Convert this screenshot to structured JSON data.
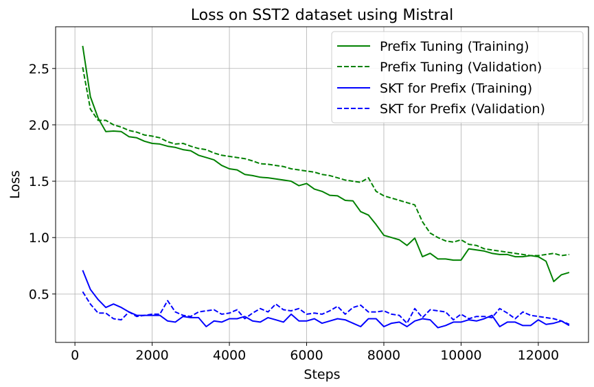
{
  "chart_data": {
    "type": "line",
    "title": "Loss on SST2 dataset using Mistral",
    "xlabel": "Steps",
    "ylabel": "Loss",
    "xlim": [
      -500,
      13300
    ],
    "ylim": [
      0.07,
      2.87
    ],
    "xticks": [
      0,
      2000,
      4000,
      6000,
      8000,
      10000,
      12000
    ],
    "yticks": [
      0.5,
      1.0,
      1.5,
      2.0,
      2.5
    ],
    "xtick_labels": [
      "0",
      "2000",
      "4000",
      "6000",
      "8000",
      "10000",
      "12000"
    ],
    "ytick_labels": [
      "0.5",
      "1.0",
      "1.5",
      "2.0",
      "2.5"
    ],
    "grid": true,
    "legend_position": "top-right",
    "x": [
      200,
      400,
      600,
      800,
      1000,
      1200,
      1400,
      1600,
      1800,
      2000,
      2200,
      2400,
      2600,
      2800,
      3000,
      3200,
      3400,
      3600,
      3800,
      4000,
      4200,
      4400,
      4600,
      4800,
      5000,
      5200,
      5400,
      5600,
      5800,
      6000,
      6200,
      6400,
      6600,
      6800,
      7000,
      7200,
      7400,
      7600,
      7800,
      8000,
      8200,
      8400,
      8600,
      8800,
      9000,
      9200,
      9400,
      9600,
      9800,
      10000,
      10200,
      10400,
      10600,
      10800,
      11000,
      11200,
      11400,
      11600,
      11800,
      12000,
      12200,
      12400,
      12600,
      12800
    ],
    "series": [
      {
        "name": "Prefix Tuning (Training)",
        "color": "#008000",
        "dash": "solid",
        "values": [
          2.7,
          2.25,
          2.06,
          1.94,
          1.945,
          1.94,
          1.895,
          1.885,
          1.855,
          1.835,
          1.83,
          1.81,
          1.8,
          1.78,
          1.77,
          1.73,
          1.71,
          1.69,
          1.64,
          1.61,
          1.6,
          1.56,
          1.55,
          1.535,
          1.53,
          1.52,
          1.51,
          1.5,
          1.46,
          1.48,
          1.43,
          1.41,
          1.375,
          1.37,
          1.33,
          1.325,
          1.23,
          1.2,
          1.115,
          1.02,
          1.0,
          0.98,
          0.93,
          0.995,
          0.83,
          0.86,
          0.81,
          0.81,
          0.8,
          0.8,
          0.9,
          0.89,
          0.88,
          0.86,
          0.85,
          0.85,
          0.83,
          0.83,
          0.84,
          0.83,
          0.79,
          0.61,
          0.67,
          0.69
        ]
      },
      {
        "name": "Prefix Tuning (Validation)",
        "color": "#008000",
        "dash": "dashed",
        "values": [
          2.51,
          2.14,
          2.04,
          2.04,
          2.0,
          1.98,
          1.95,
          1.935,
          1.91,
          1.9,
          1.885,
          1.85,
          1.83,
          1.835,
          1.81,
          1.79,
          1.78,
          1.75,
          1.73,
          1.72,
          1.71,
          1.7,
          1.68,
          1.655,
          1.65,
          1.64,
          1.63,
          1.61,
          1.6,
          1.59,
          1.58,
          1.56,
          1.55,
          1.53,
          1.51,
          1.5,
          1.49,
          1.53,
          1.41,
          1.37,
          1.35,
          1.33,
          1.31,
          1.29,
          1.14,
          1.04,
          1.0,
          0.97,
          0.96,
          0.98,
          0.94,
          0.93,
          0.9,
          0.89,
          0.88,
          0.87,
          0.86,
          0.85,
          0.84,
          0.84,
          0.85,
          0.86,
          0.84,
          0.85
        ]
      },
      {
        "name": "SKT for Prefix (Training)",
        "color": "#0000ff",
        "dash": "solid",
        "values": [
          0.71,
          0.54,
          0.45,
          0.38,
          0.41,
          0.38,
          0.34,
          0.31,
          0.31,
          0.31,
          0.31,
          0.26,
          0.25,
          0.3,
          0.29,
          0.29,
          0.21,
          0.26,
          0.25,
          0.28,
          0.28,
          0.3,
          0.26,
          0.25,
          0.29,
          0.27,
          0.25,
          0.32,
          0.26,
          0.26,
          0.28,
          0.24,
          0.26,
          0.28,
          0.27,
          0.24,
          0.21,
          0.28,
          0.28,
          0.21,
          0.24,
          0.25,
          0.21,
          0.26,
          0.28,
          0.27,
          0.2,
          0.22,
          0.25,
          0.25,
          0.27,
          0.26,
          0.28,
          0.31,
          0.21,
          0.25,
          0.25,
          0.22,
          0.22,
          0.27,
          0.23,
          0.24,
          0.26,
          0.22
        ]
      },
      {
        "name": "SKT for Prefix (Validation)",
        "color": "#0000ff",
        "dash": "dashed",
        "values": [
          0.52,
          0.41,
          0.33,
          0.33,
          0.28,
          0.27,
          0.34,
          0.3,
          0.31,
          0.32,
          0.32,
          0.44,
          0.34,
          0.31,
          0.3,
          0.34,
          0.35,
          0.36,
          0.32,
          0.33,
          0.36,
          0.28,
          0.33,
          0.37,
          0.34,
          0.41,
          0.36,
          0.35,
          0.37,
          0.32,
          0.33,
          0.32,
          0.35,
          0.39,
          0.32,
          0.38,
          0.4,
          0.34,
          0.34,
          0.35,
          0.32,
          0.31,
          0.24,
          0.37,
          0.29,
          0.36,
          0.35,
          0.34,
          0.27,
          0.32,
          0.28,
          0.3,
          0.3,
          0.29,
          0.37,
          0.33,
          0.28,
          0.34,
          0.31,
          0.3,
          0.29,
          0.28,
          0.26,
          0.23
        ]
      }
    ]
  }
}
